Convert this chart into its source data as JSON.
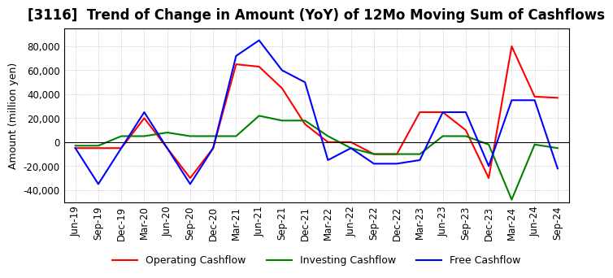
{
  "title": "[3116]  Trend of Change in Amount (YoY) of 12Mo Moving Sum of Cashflows",
  "ylabel": "Amount (million yen)",
  "ylim": [
    -50000,
    95000
  ],
  "yticks": [
    -40000,
    -20000,
    0,
    20000,
    40000,
    60000,
    80000
  ],
  "x_labels": [
    "Jun-19",
    "Sep-19",
    "Dec-19",
    "Mar-20",
    "Jun-20",
    "Sep-20",
    "Dec-20",
    "Mar-21",
    "Jun-21",
    "Sep-21",
    "Dec-21",
    "Mar-22",
    "Jun-22",
    "Sep-22",
    "Dec-22",
    "Mar-23",
    "Jun-23",
    "Sep-23",
    "Dec-23",
    "Mar-24",
    "Jun-24",
    "Sep-24"
  ],
  "operating": [
    -5000,
    -5000,
    -5000,
    20000,
    -5000,
    -30000,
    -5000,
    65000,
    63000,
    45000,
    15000,
    0,
    0,
    -10000,
    -10000,
    25000,
    25000,
    10000,
    -30000,
    80000,
    38000,
    37000
  ],
  "investing": [
    -3000,
    -3000,
    5000,
    5000,
    8000,
    5000,
    5000,
    5000,
    22000,
    18000,
    18000,
    5000,
    -5000,
    -10000,
    -10000,
    -10000,
    5000,
    5000,
    -2000,
    -48000,
    -2000,
    -5000
  ],
  "free": [
    -5000,
    -35000,
    -5000,
    25000,
    -5000,
    -35000,
    -5000,
    72000,
    85000,
    60000,
    50000,
    -15000,
    -5000,
    -18000,
    -18000,
    -15000,
    25000,
    25000,
    -20000,
    35000,
    35000,
    -22000
  ],
  "operating_color": "#ff0000",
  "investing_color": "#008000",
  "free_color": "#0000ff",
  "background_color": "#ffffff",
  "grid_color": "#aaaaaa",
  "title_fontsize": 12,
  "label_fontsize": 9,
  "tick_fontsize": 8.5
}
